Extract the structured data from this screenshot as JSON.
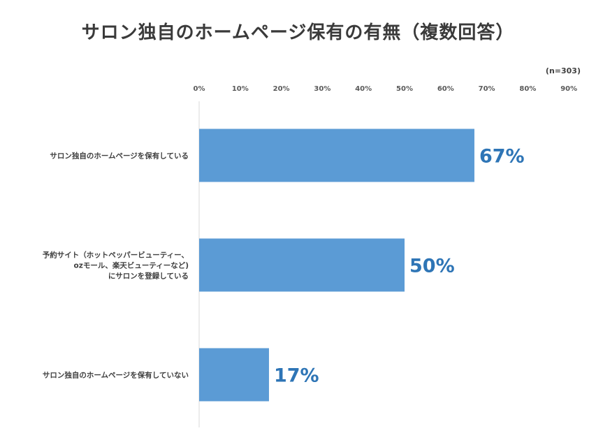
{
  "chart_data": {
    "type": "bar",
    "orientation": "horizontal",
    "title": "サロン独自のホームページ保有の有無（複数回答）",
    "note": "(n=303)",
    "x_ticks": [
      "0%",
      "10%",
      "20%",
      "30%",
      "40%",
      "50%",
      "60%",
      "70%",
      "80%",
      "90%"
    ],
    "xlim": [
      0,
      90
    ],
    "categories": [
      [
        "サロン独自のホームページを保有している"
      ],
      [
        "予約サイト（ホットペッパービューティー、",
        "ozモール、楽天ビューティーなど)",
        "にサロンを登録している"
      ],
      [
        "サロン独自のホームページを保有していない"
      ]
    ],
    "values": [
      67,
      50,
      17
    ],
    "data_labels": [
      "67%",
      "50%",
      "17%"
    ],
    "bar_color": "#5b9bd5",
    "label_color": "#2e75b6",
    "grid": false
  }
}
